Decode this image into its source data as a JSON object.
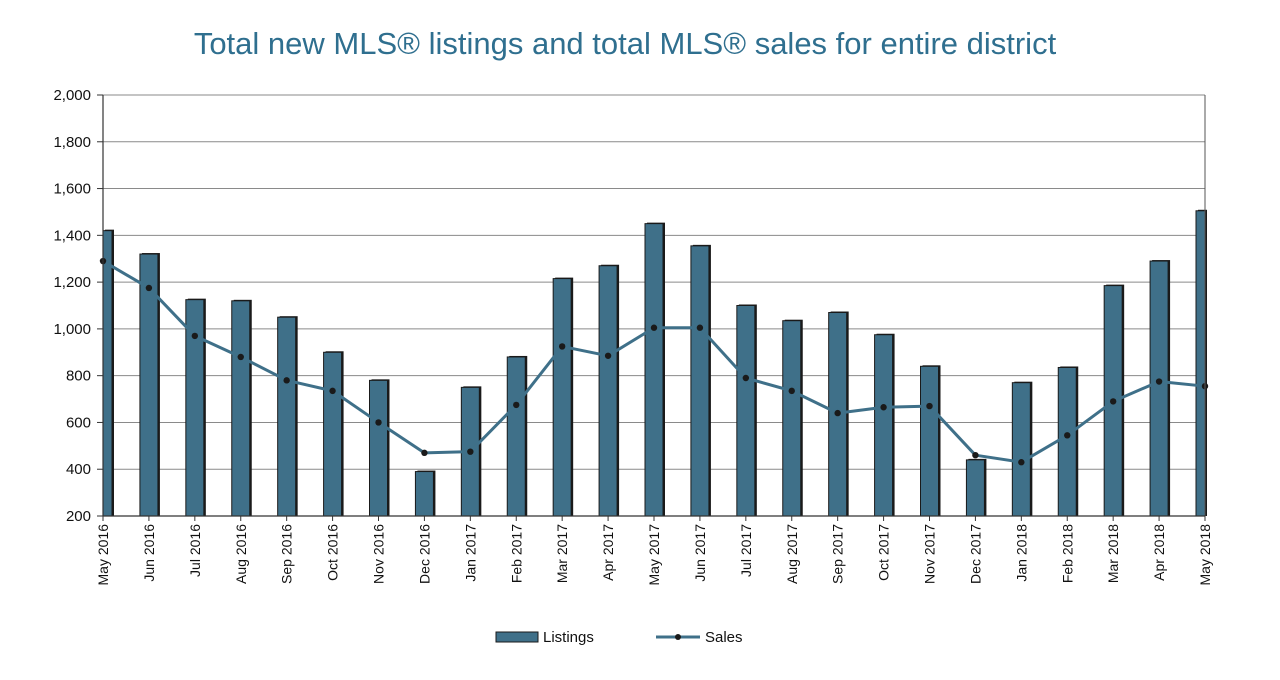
{
  "chart_data": {
    "type": "bar",
    "title": "Total new MLS® listings and total MLS® sales for entire district",
    "xlabel": "",
    "ylabel": "",
    "ylim": [
      200,
      2000
    ],
    "yticks": [
      "200",
      "400",
      "600",
      "800",
      "1,000",
      "1,200",
      "1,400",
      "1,600",
      "1,800",
      "2,000"
    ],
    "ytick_values": [
      200,
      400,
      600,
      800,
      1000,
      1200,
      1400,
      1600,
      1800,
      2000
    ],
    "grid": true,
    "legend_position": "bottom",
    "categories": [
      "May 2016",
      "Jun 2016",
      "Jul 2016",
      "Aug 2016",
      "Sep 2016",
      "Oct 2016",
      "Nov 2016",
      "Dec 2016",
      "Jan 2017",
      "Feb 2017",
      "Mar 2017",
      "Apr 2017",
      "May 2017",
      "Jun 2017",
      "Jul 2017",
      "Aug 2017",
      "Sep 2017",
      "Oct 2017",
      "Nov 2017",
      "Dec 2017",
      "Jan 2018",
      "Feb 2018",
      "Mar 2018",
      "Apr 2018",
      "May 2018"
    ],
    "series": [
      {
        "name": "Listings",
        "kind": "bar",
        "color": "#3f7089",
        "values": [
          1420,
          1320,
          1125,
          1120,
          1050,
          900,
          780,
          390,
          750,
          880,
          1215,
          1270,
          1450,
          1355,
          1100,
          1035,
          1070,
          975,
          840,
          440,
          770,
          835,
          1185,
          1290,
          1505
        ]
      },
      {
        "name": "Sales",
        "kind": "line",
        "color": "#3f7089",
        "values": [
          1290,
          1175,
          970,
          880,
          780,
          735,
          600,
          470,
          475,
          675,
          925,
          885,
          1005,
          1005,
          790,
          735,
          640,
          665,
          670,
          460,
          430,
          545,
          690,
          775,
          755
        ]
      }
    ]
  }
}
